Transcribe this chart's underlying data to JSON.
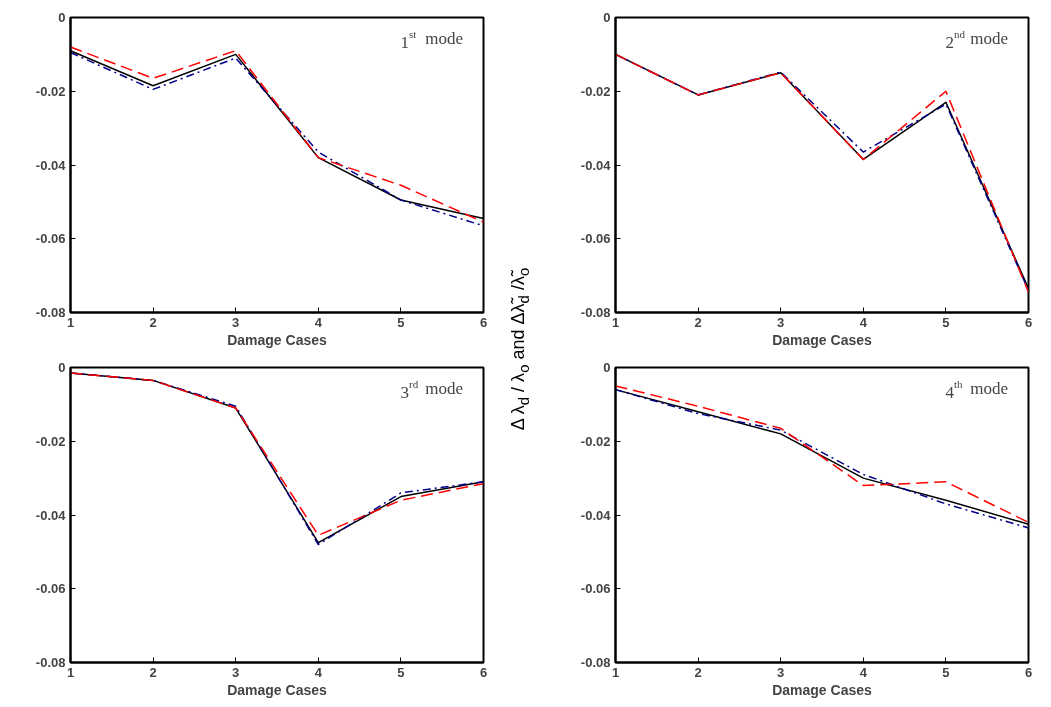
{
  "chart_data": [
    {
      "type": "line",
      "x": [
        1,
        2,
        3,
        4,
        5,
        6
      ],
      "xlabel": "Damage Cases",
      "ylabel": "Δ λ$_{d}$ / λ$_{o}$  and  Δλ̃$_{d}$ /λ̃$_{o}$",
      "xlim": [
        1,
        6
      ],
      "xticks": [
        1,
        2,
        3,
        4,
        5,
        6
      ],
      "ylim": [
        -0.08,
        0
      ],
      "yticks": [
        -0.08,
        -0.06,
        -0.04,
        -0.02,
        0
      ],
      "grid": false,
      "annotations": [
        "1$^{st}$ mode"
      ],
      "series": [
        {
          "color": "#000000",
          "line_style": "solid",
          "values": [
            -0.009,
            -0.0185,
            -0.01,
            -0.038,
            -0.0495,
            -0.0545
          ]
        },
        {
          "color": "#00008b",
          "line_style": "dashdot",
          "values": [
            -0.0095,
            -0.0195,
            -0.011,
            -0.0365,
            -0.0495,
            -0.0565
          ]
        },
        {
          "color": "#ff0000",
          "line_style": "dashed",
          "values": [
            -0.008,
            -0.0165,
            -0.009,
            -0.038,
            -0.0455,
            -0.0555
          ]
        }
      ]
    },
    {
      "type": "line",
      "x": [
        1,
        2,
        3,
        4,
        5,
        6
      ],
      "xlabel": "Damage Cases",
      "xlim": [
        1,
        6
      ],
      "xticks": [
        1,
        2,
        3,
        4,
        5,
        6
      ],
      "ylim": [
        -0.08,
        0
      ],
      "yticks": [
        -0.08,
        -0.06,
        -0.04,
        -0.02,
        0
      ],
      "grid": false,
      "annotations": [
        "2$^{nd}$ mode"
      ],
      "series": [
        {
          "color": "#000000",
          "line_style": "solid",
          "values": [
            -0.01,
            -0.021,
            -0.015,
            -0.0385,
            -0.023,
            -0.0735
          ]
        },
        {
          "color": "#00008b",
          "line_style": "dashdot",
          "values": [
            -0.01,
            -0.021,
            -0.0148,
            -0.0365,
            -0.0235,
            -0.074
          ]
        },
        {
          "color": "#ff0000",
          "line_style": "dashed",
          "values": [
            -0.01,
            -0.021,
            -0.015,
            -0.0385,
            -0.02,
            -0.0745
          ]
        }
      ]
    },
    {
      "type": "line",
      "x": [
        1,
        2,
        3,
        4,
        5,
        6
      ],
      "xlabel": "Damage Cases",
      "xlim": [
        1,
        6
      ],
      "xticks": [
        1,
        2,
        3,
        4,
        5,
        6
      ],
      "ylim": [
        -0.08,
        0
      ],
      "yticks": [
        -0.08,
        -0.06,
        -0.04,
        -0.02,
        0
      ],
      "grid": false,
      "annotations": [
        "3$^{rd}$ mode"
      ],
      "series": [
        {
          "color": "#000000",
          "line_style": "solid",
          "values": [
            -0.0015,
            -0.0035,
            -0.011,
            -0.0475,
            -0.035,
            -0.031
          ]
        },
        {
          "color": "#00008b",
          "line_style": "dashdot",
          "values": [
            -0.0015,
            -0.0035,
            -0.0105,
            -0.048,
            -0.034,
            -0.031
          ]
        },
        {
          "color": "#ff0000",
          "line_style": "dashed",
          "values": [
            -0.0015,
            -0.0035,
            -0.011,
            -0.0455,
            -0.036,
            -0.0315
          ]
        }
      ]
    },
    {
      "type": "line",
      "x": [
        1,
        2,
        3,
        4,
        5,
        6
      ],
      "xlabel": "Damage Cases",
      "xlim": [
        1,
        6
      ],
      "xticks": [
        1,
        2,
        3,
        4,
        5,
        6
      ],
      "ylim": [
        -0.08,
        0
      ],
      "yticks": [
        -0.08,
        -0.06,
        -0.04,
        -0.02,
        0
      ],
      "grid": false,
      "annotations": [
        "4$^{th}$ mode"
      ],
      "series": [
        {
          "color": "#000000",
          "line_style": "solid",
          "values": [
            -0.006,
            -0.012,
            -0.018,
            -0.03,
            -0.036,
            -0.0425
          ]
        },
        {
          "color": "#00008b",
          "line_style": "dashdot",
          "values": [
            -0.006,
            -0.0125,
            -0.017,
            -0.029,
            -0.037,
            -0.0435
          ]
        },
        {
          "color": "#ff0000",
          "line_style": "dashed",
          "values": [
            -0.005,
            -0.0105,
            -0.0165,
            -0.032,
            -0.031,
            -0.042
          ]
        }
      ]
    }
  ]
}
